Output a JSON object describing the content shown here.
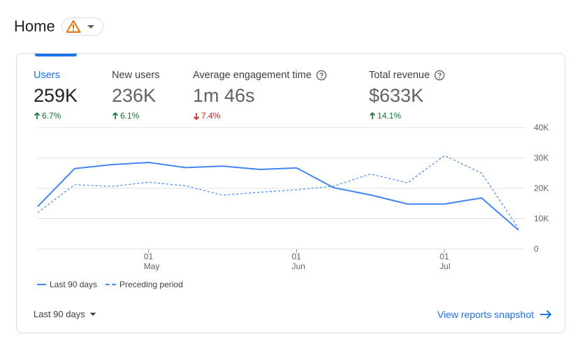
{
  "header": {
    "title": "Home",
    "warning_icon": "warning-icon",
    "dropdown_icon": "caret-down-icon"
  },
  "colors": {
    "accent": "#1a73e8",
    "line": "#4285f4",
    "positive": "#137333",
    "negative": "#c5221f"
  },
  "metrics": [
    {
      "label": "Users",
      "value": "259K",
      "delta": "6.7%",
      "direction": "up",
      "selected": true,
      "help": false
    },
    {
      "label": "New users",
      "value": "236K",
      "delta": "6.1%",
      "direction": "up",
      "selected": false,
      "help": false
    },
    {
      "label": "Average engagement time",
      "value": "1m 46s",
      "delta": "7.4%",
      "direction": "down",
      "selected": false,
      "help": true
    },
    {
      "label": "Total revenue",
      "value": "$633K",
      "delta": "14.1%",
      "direction": "up",
      "selected": false,
      "help": true
    }
  ],
  "chart_data": {
    "type": "line",
    "x": [
      0,
      1,
      2,
      3,
      4,
      5,
      6,
      7,
      8,
      9,
      10,
      11,
      12,
      13
    ],
    "x_ticks": [
      {
        "x": 3,
        "day": "01",
        "month": "May"
      },
      {
        "x": 7,
        "day": "01",
        "month": "Jun"
      },
      {
        "x": 11,
        "day": "01",
        "month": "Jul"
      }
    ],
    "y_ticks": [
      "40K",
      "30K",
      "20K",
      "10K",
      "0"
    ],
    "ylim": [
      0,
      40000
    ],
    "series": [
      {
        "name": "Last 90 days",
        "style": "solid",
        "values": [
          14000,
          26500,
          27800,
          28500,
          26800,
          27300,
          26200,
          26700,
          20200,
          17800,
          14800,
          14800,
          16800,
          6200
        ]
      },
      {
        "name": "Preceding period",
        "style": "dashed",
        "values": [
          12000,
          21200,
          20600,
          22000,
          20800,
          17700,
          18700,
          19500,
          20700,
          24700,
          21800,
          30800,
          25000,
          6800
        ]
      }
    ],
    "legend": "bottom-left",
    "grid": true
  },
  "footer": {
    "range_label": "Last 90 days",
    "link_label": "View reports snapshot"
  }
}
